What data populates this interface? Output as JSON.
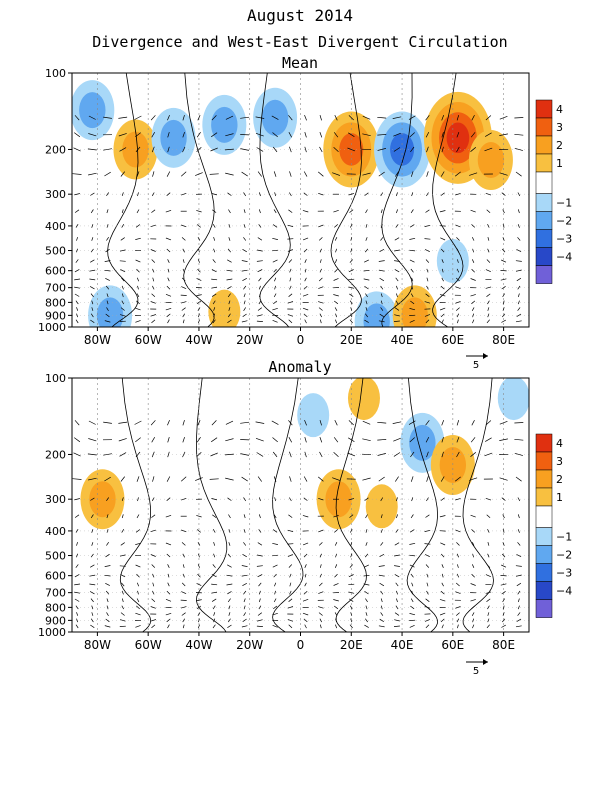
{
  "header": {
    "title": "August 2014",
    "subtitle": "Divergence and West-East Divergent Circulation"
  },
  "legend": {
    "levels": [
      "4",
      "3",
      "2",
      "1",
      "−1",
      "−2",
      "−3",
      "−4"
    ],
    "colors": [
      "#e03010",
      "#f06010",
      "#f8a020",
      "#f8c040",
      "#ffffff",
      "#a8d8f8",
      "#60a8f0",
      "#3070e0",
      "#2848c8",
      "#7060d8"
    ]
  },
  "vector_reference": {
    "label": "5"
  },
  "chart_data": [
    {
      "type": "heatmap",
      "title": "Mean",
      "x_ticks": [
        "80W",
        "60W",
        "40W",
        "20W",
        "0",
        "20E",
        "40E",
        "60E",
        "80E"
      ],
      "x_tick_lon": [
        -80,
        -60,
        -40,
        -20,
        0,
        20,
        40,
        60,
        80
      ],
      "xlim": [
        -90,
        90
      ],
      "y_ticks": [
        "100",
        "200",
        "300",
        "400",
        "500",
        "600",
        "700",
        "800",
        "900",
        "1000"
      ],
      "y_tick_hpa": [
        100,
        200,
        300,
        400,
        500,
        600,
        700,
        800,
        900,
        1000
      ],
      "ylim": [
        100,
        1000
      ],
      "y_scale": "log",
      "color_levels": [
        -4,
        -3,
        -2,
        -1,
        1,
        2,
        3,
        4
      ],
      "regions": [
        {
          "lon": -82,
          "hpa": 140,
          "value": -2
        },
        {
          "lon": -65,
          "hpa": 200,
          "value": 2
        },
        {
          "lon": -50,
          "hpa": 180,
          "value": -2
        },
        {
          "lon": -30,
          "hpa": 160,
          "value": -2
        },
        {
          "lon": -10,
          "hpa": 150,
          "value": -2
        },
        {
          "lon": 20,
          "hpa": 200,
          "value": 3
        },
        {
          "lon": 40,
          "hpa": 200,
          "value": -3
        },
        {
          "lon": 62,
          "hpa": 180,
          "value": 4
        },
        {
          "lon": 75,
          "hpa": 220,
          "value": 2
        },
        {
          "lon": 60,
          "hpa": 550,
          "value": -1
        },
        {
          "lon": -30,
          "hpa": 870,
          "value": 1
        },
        {
          "lon": 30,
          "hpa": 950,
          "value": -2
        },
        {
          "lon": 45,
          "hpa": 900,
          "value": 2
        },
        {
          "lon": -75,
          "hpa": 900,
          "value": -2
        }
      ]
    },
    {
      "type": "heatmap",
      "title": "Anomaly",
      "x_ticks": [
        "80W",
        "60W",
        "40W",
        "20W",
        "0",
        "20E",
        "40E",
        "60E",
        "80E"
      ],
      "x_tick_lon": [
        -80,
        -60,
        -40,
        -20,
        0,
        20,
        40,
        60,
        80
      ],
      "xlim": [
        -90,
        90
      ],
      "y_ticks": [
        "100",
        "200",
        "300",
        "400",
        "500",
        "600",
        "700",
        "800",
        "900",
        "1000"
      ],
      "y_tick_hpa": [
        100,
        200,
        300,
        400,
        500,
        600,
        700,
        800,
        900,
        1000
      ],
      "ylim": [
        100,
        1000
      ],
      "y_scale": "log",
      "color_levels": [
        -4,
        -3,
        -2,
        -1,
        1,
        2,
        3,
        4
      ],
      "regions": [
        {
          "lon": 5,
          "hpa": 140,
          "value": -1
        },
        {
          "lon": 25,
          "hpa": 120,
          "value": 1
        },
        {
          "lon": 48,
          "hpa": 180,
          "value": -2
        },
        {
          "lon": 60,
          "hpa": 220,
          "value": 2
        },
        {
          "lon": 84,
          "hpa": 120,
          "value": -1
        },
        {
          "lon": -78,
          "hpa": 300,
          "value": 2
        },
        {
          "lon": 15,
          "hpa": 300,
          "value": 2
        },
        {
          "lon": 32,
          "hpa": 320,
          "value": 1
        }
      ]
    }
  ]
}
